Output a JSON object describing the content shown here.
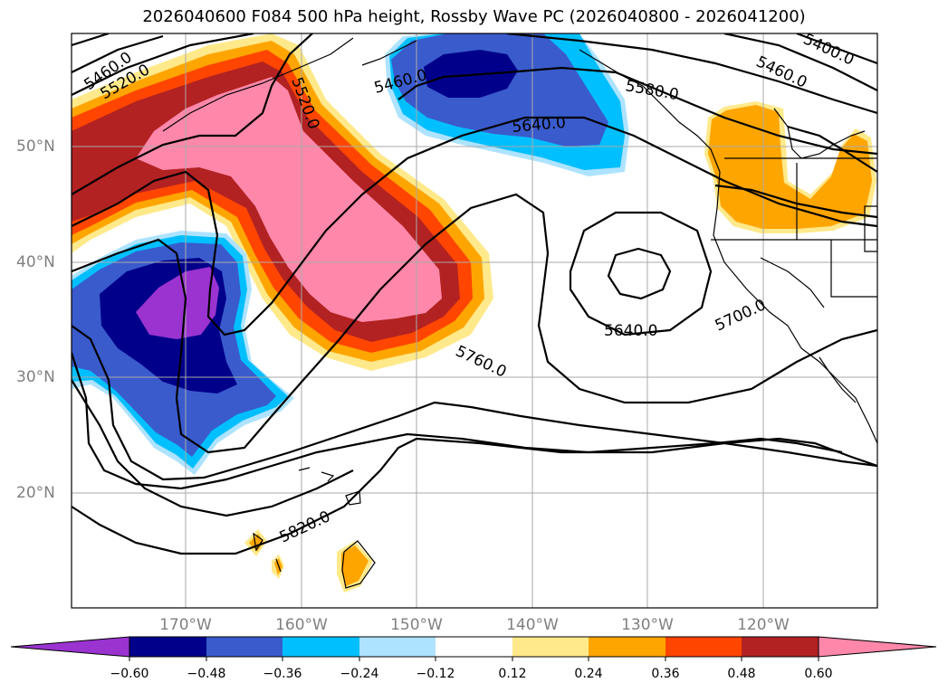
{
  "title": "2026040600 F084 500 hPa height, Rossby Wave PC (2026040800 - 2026041200)",
  "map": {
    "lat_labels": [
      "50°N",
      "40°N",
      "30°N",
      "20°N"
    ],
    "lon_labels": [
      "170°W",
      "160°W",
      "150°W",
      "140°W",
      "130°W",
      "120°W"
    ],
    "contour_labels": [
      "5460.0",
      "5520.0",
      "5520.0",
      "5460.0",
      "5580.0",
      "5640.0",
      "5400.0",
      "5460.0",
      "5640.0",
      "5700.0",
      "5760.0",
      "5820.0"
    ],
    "colors": {
      "n060": "#9a33d0",
      "n048": "#00008b",
      "n036": "#3a5bcc",
      "n024": "#00bfff",
      "n012": "#aee3ff",
      "p012": "#ffe98a",
      "p024": "#ffa500",
      "p036": "#ff4500",
      "p048": "#b22222",
      "p060": "#ff88aa"
    }
  },
  "colorbar": {
    "ticks": [
      "−0.60",
      "−0.48",
      "−0.36",
      "−0.24",
      "−0.12",
      "0.12",
      "0.24",
      "0.36",
      "0.48",
      "0.60"
    ],
    "colors": [
      "#9a33d0",
      "#00008b",
      "#3a5bcc",
      "#00bfff",
      "#aee3ff",
      "#ffffff",
      "#ffe98a",
      "#ffa500",
      "#ff4500",
      "#b22222",
      "#ff88aa"
    ]
  }
}
